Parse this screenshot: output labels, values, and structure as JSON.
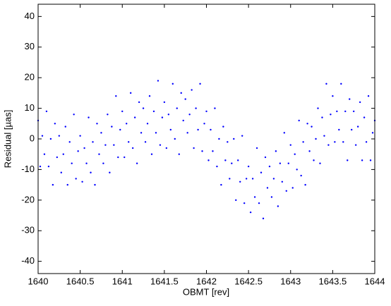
{
  "chart_data": {
    "type": "scatter",
    "x_label": "OBMT [rev]",
    "y_label": "Residual [µas]",
    "xlim": [
      1640,
      1644
    ],
    "ylim": [
      -44,
      44
    ],
    "xticks": [
      1640,
      1640.5,
      1641,
      1641.5,
      1642,
      1642.5,
      1643,
      1643.5,
      1644
    ],
    "yticks": [
      -40,
      -30,
      -20,
      -10,
      0,
      10,
      20,
      30,
      40
    ],
    "x": [
      1640,
      1640.025,
      1640.05,
      1640.075,
      1640.1,
      1640.125,
      1640.15,
      1640.175,
      1640.2,
      1640.225,
      1640.25,
      1640.275,
      1640.3,
      1640.325,
      1640.35,
      1640.375,
      1640.4,
      1640.425,
      1640.45,
      1640.475,
      1640.5,
      1640.525,
      1640.55,
      1640.575,
      1640.6,
      1640.625,
      1640.65,
      1640.675,
      1640.7,
      1640.725,
      1640.75,
      1640.775,
      1640.8,
      1640.825,
      1640.85,
      1640.875,
      1640.9,
      1640.925,
      1640.95,
      1640.975,
      1641,
      1641.025,
      1641.05,
      1641.075,
      1641.1,
      1641.125,
      1641.15,
      1641.175,
      1641.2,
      1641.225,
      1641.25,
      1641.275,
      1641.3,
      1641.325,
      1641.35,
      1641.375,
      1641.4,
      1641.425,
      1641.45,
      1641.475,
      1641.5,
      1641.525,
      1641.55,
      1641.575,
      1641.6,
      1641.625,
      1641.65,
      1641.675,
      1641.7,
      1641.725,
      1641.75,
      1641.775,
      1641.8,
      1641.825,
      1641.85,
      1641.875,
      1641.9,
      1641.925,
      1641.95,
      1641.975,
      1642,
      1642.025,
      1642.05,
      1642.075,
      1642.1,
      1642.125,
      1642.15,
      1642.175,
      1642.2,
      1642.225,
      1642.25,
      1642.275,
      1642.3,
      1642.325,
      1642.35,
      1642.375,
      1642.4,
      1642.425,
      1642.45,
      1642.475,
      1642.5,
      1642.525,
      1642.55,
      1642.575,
      1642.6,
      1642.625,
      1642.65,
      1642.675,
      1642.7,
      1642.725,
      1642.75,
      1642.775,
      1642.8,
      1642.825,
      1642.85,
      1642.875,
      1642.9,
      1642.925,
      1642.95,
      1642.975,
      1643,
      1643.025,
      1643.05,
      1643.075,
      1643.1,
      1643.125,
      1643.15,
      1643.175,
      1643.2,
      1643.225,
      1643.25,
      1643.275,
      1643.3,
      1643.325,
      1643.35,
      1643.375,
      1643.4,
      1643.425,
      1643.45,
      1643.475,
      1643.5,
      1643.525,
      1643.55,
      1643.575,
      1643.6,
      1643.625,
      1643.65,
      1643.675,
      1643.7,
      1643.725,
      1643.75,
      1643.775,
      1643.8,
      1643.825,
      1643.85,
      1643.875,
      1643.9,
      1643.925,
      1643.95,
      1643.975,
      1644
    ],
    "series": [
      {
        "color": "#0000ff",
        "values": [
          6,
          -9,
          1,
          -5,
          9,
          -9,
          0,
          -15,
          5,
          -6,
          1,
          -11,
          -5,
          4,
          -15,
          -1,
          -8,
          8,
          -13,
          -4,
          1,
          -14,
          -3,
          -8,
          7,
          -11,
          -1,
          -15,
          5,
          -5,
          2,
          -8,
          -2,
          8,
          -11,
          4,
          -2,
          14,
          -6,
          3,
          9,
          -6,
          5,
          -1,
          15,
          -3,
          7,
          -8,
          12,
          2,
          10,
          -1,
          5,
          14,
          -5,
          9,
          2,
          19,
          -2,
          7,
          12,
          -3,
          8,
          3,
          18,
          0,
          10,
          -5,
          15,
          6,
          13,
          2,
          8,
          16,
          -3,
          10,
          3,
          18,
          -4,
          5,
          9,
          -7,
          3,
          -4,
          10,
          -9,
          0,
          -15,
          4,
          -7,
          -1,
          -13,
          -8,
          0,
          -20,
          -7,
          -14,
          1,
          -21,
          -13,
          -9,
          -24,
          -13,
          -19,
          -3,
          -21,
          -11,
          -26,
          -6,
          -16,
          -9,
          -19,
          -13,
          -4,
          -22,
          -8,
          -14,
          2,
          -17,
          -8,
          -2,
          -16,
          -5,
          -10,
          6,
          -12,
          -1,
          -15,
          5,
          -4,
          4,
          -7,
          0,
          10,
          -8,
          7,
          1,
          18,
          -2,
          8,
          14,
          -1,
          9,
          3,
          18,
          -1,
          9,
          -7,
          13,
          3,
          9,
          -2,
          4,
          12,
          -7,
          7,
          -1,
          14,
          -7,
          2,
          6
        ]
      }
    ]
  }
}
